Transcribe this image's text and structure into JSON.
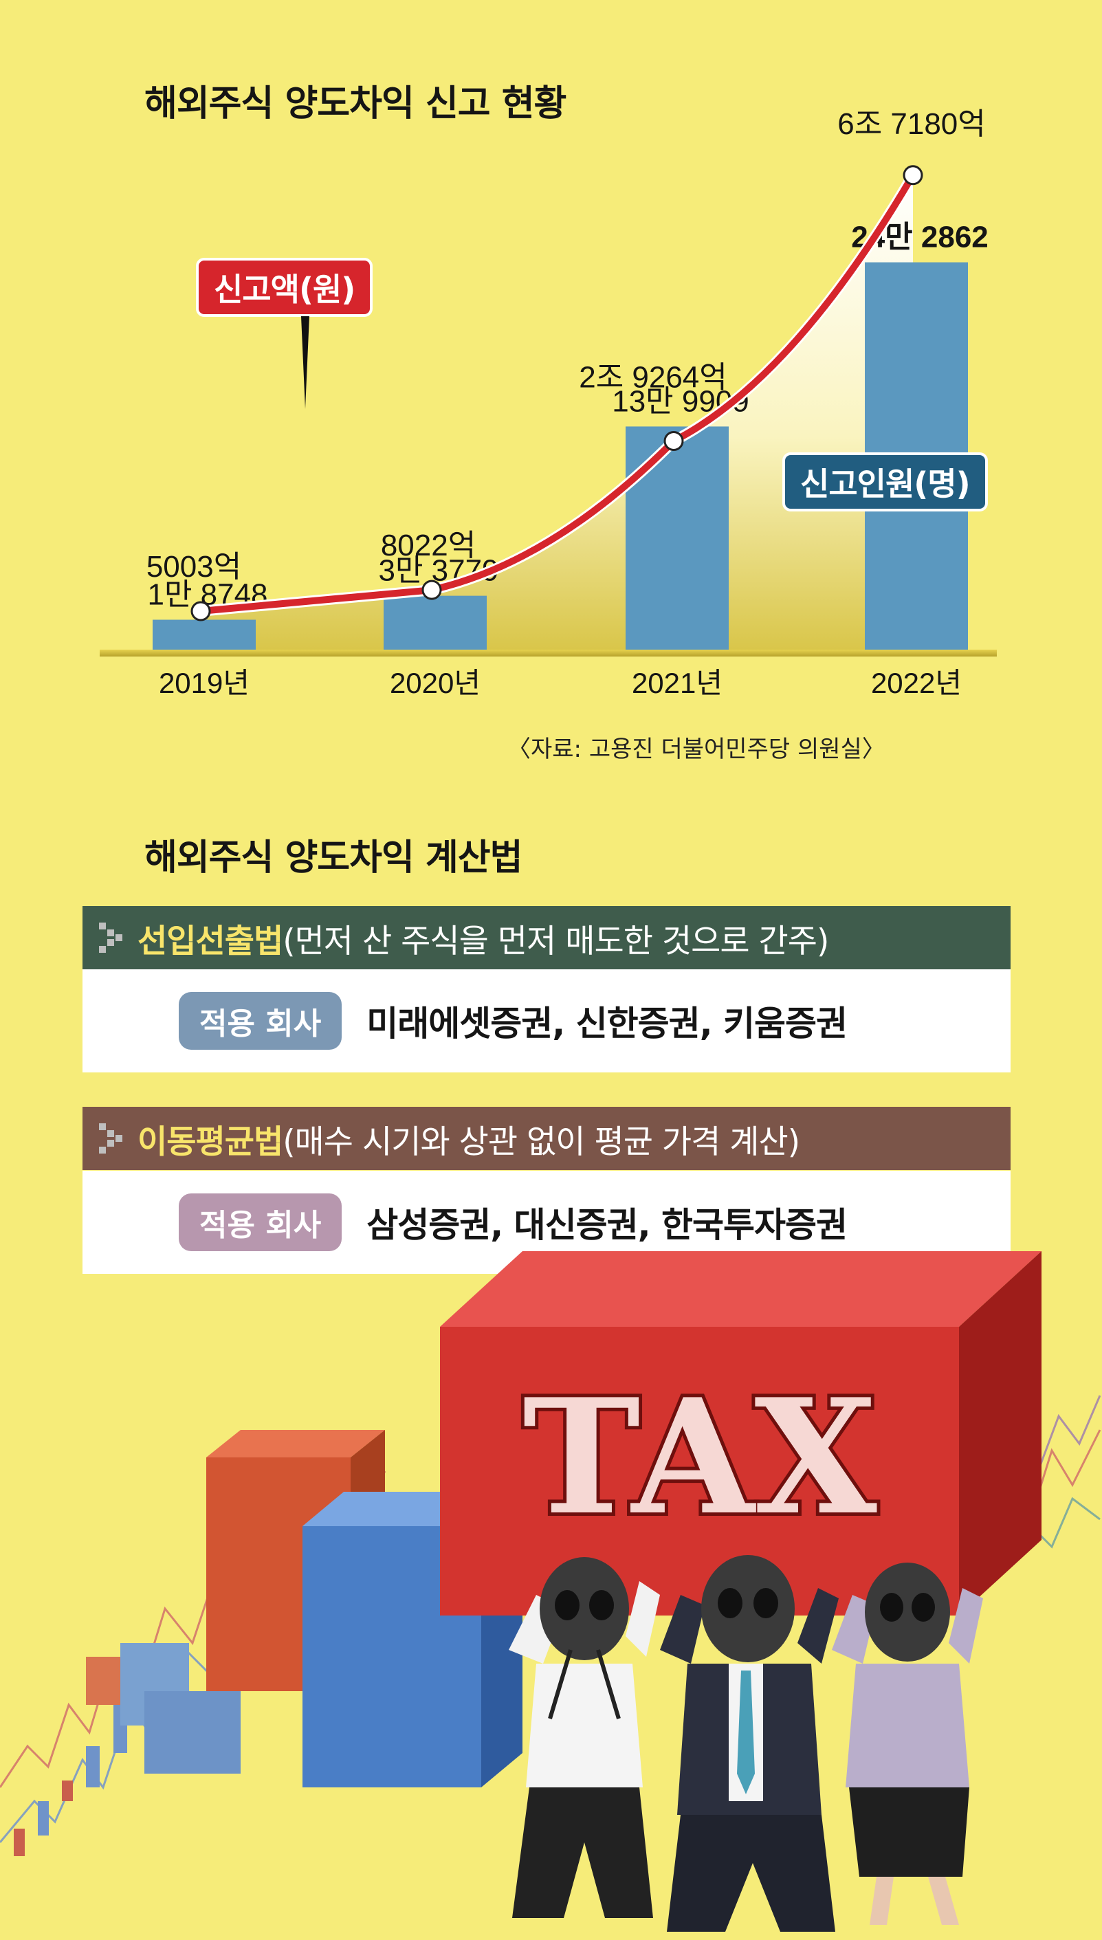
{
  "chart": {
    "title": "해외주식 양도차익 신고 현황",
    "legend_amount": "신고액(원)",
    "legend_people": "신고인원(명)",
    "source": "〈자료: 고용진 더불어민주당 의원실〉"
  },
  "chart_data": {
    "type": "bar",
    "title": "해외주식 양도차익 신고 현황",
    "categories": [
      "2019년",
      "2020년",
      "2021년",
      "2022년"
    ],
    "series": [
      {
        "name": "신고인원(명)",
        "type": "bar",
        "values": [
          18748,
          33779,
          139909,
          242862
        ],
        "labels": [
          "1만 8748",
          "3만 3779",
          "13만 9909",
          "24만 2862"
        ],
        "color": "#5b98bf"
      },
      {
        "name": "신고액(원)",
        "type": "line",
        "values": [
          500300000000,
          802200000000,
          2926400000000,
          6718000000000
        ],
        "labels": [
          "5003억",
          "8022억",
          "2조 9264억",
          "6조 7180억"
        ],
        "color": "#d6252c"
      }
    ],
    "source": "〈자료: 고용진 더불어민주당 의원실〉"
  },
  "methods": {
    "title": "해외주식 양도차익 계산법",
    "items": [
      {
        "name": "선입선출법",
        "desc": "(먼저 산 주식을 먼저 매도한 것으로 간주)",
        "applies_label": "적용 회사",
        "firms": "미래에셋증권, 신한증권, 키움증권",
        "head_color": "#3f5c4c",
        "pill_color": "#7c98b4"
      },
      {
        "name": "이동평균법",
        "desc": "(매수 시기와 상관 없이 평균 가격 계산)",
        "applies_label": "적용 회사",
        "firms": "삼성증권, 대신증권, 한국투자증권",
        "head_color": "#7b5549",
        "pill_color": "#b797ae"
      }
    ]
  },
  "illustration": {
    "tax_text": "TAX"
  }
}
